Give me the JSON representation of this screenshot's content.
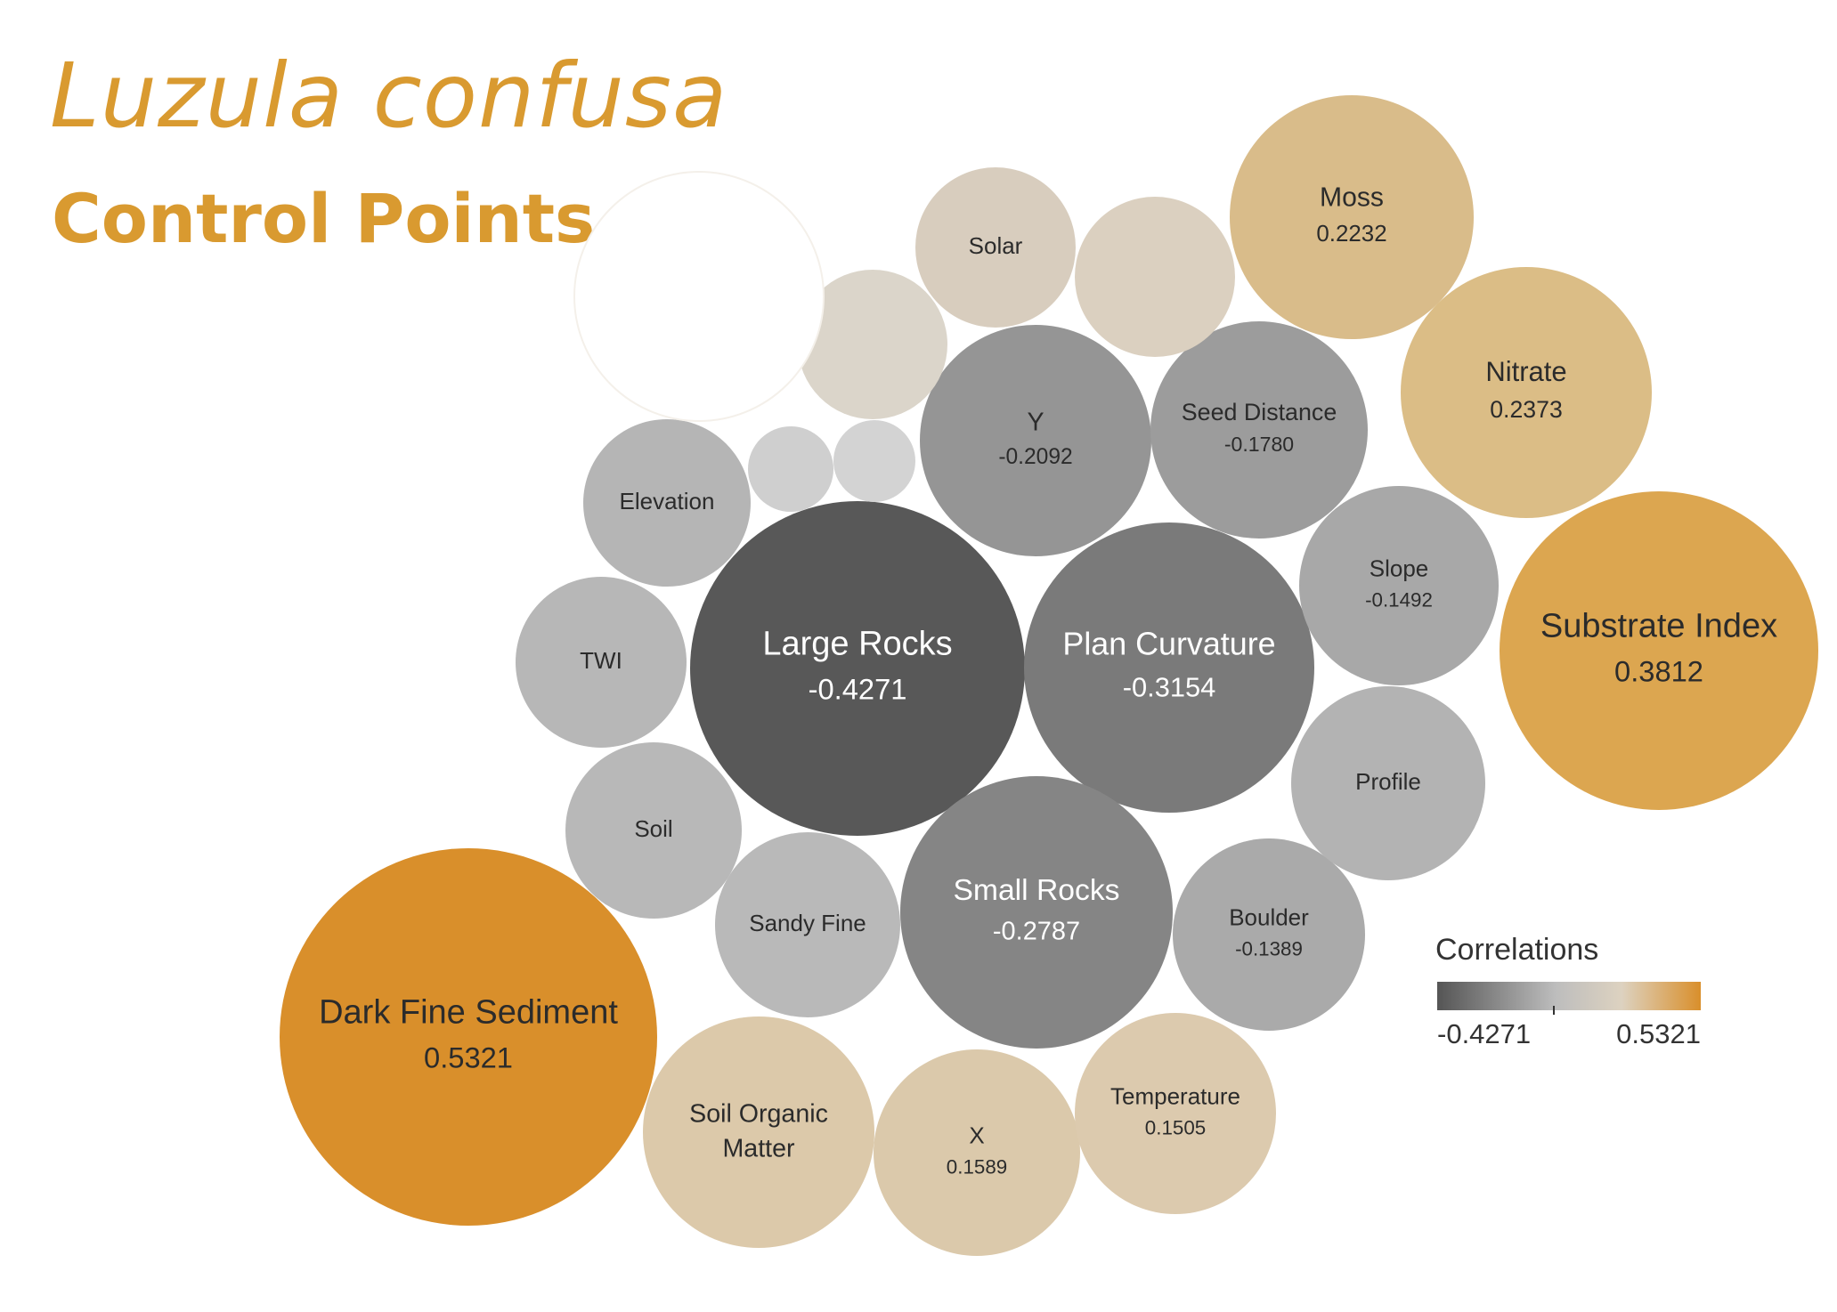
{
  "title": "Luzula confusa",
  "subtitle": "Control Points",
  "chart_data": {
    "type": "bubble",
    "title": "Luzula confusa",
    "subtitle": "Control Points",
    "size_encodes": "absolute correlation",
    "color_encodes": "correlation",
    "legend": {
      "title": "Correlations",
      "min_label": "-0.4271",
      "max_label": "0.5321",
      "placement": "bottom-right",
      "colors": [
        "#555555",
        "#bdbdbd",
        "#ddd2c0",
        "#d98f2b"
      ]
    },
    "points": [
      {
        "label": "Large Rocks",
        "value": -0.4271,
        "value_label": "-0.4271",
        "color": "#585858"
      },
      {
        "label": "Plan Curvature",
        "value": -0.3154,
        "value_label": "-0.3154",
        "color": "#7a7a7a"
      },
      {
        "label": "Small Rocks",
        "value": -0.2787,
        "value_label": "-0.2787",
        "color": "#858585"
      },
      {
        "label": "Y",
        "value": -0.2092,
        "value_label": "-0.2092",
        "color": "#959595"
      },
      {
        "label": "Seed Distance",
        "value": -0.178,
        "value_label": "-0.1780",
        "color": "#9c9c9c"
      },
      {
        "label": "Slope",
        "value": -0.1492,
        "value_label": "-0.1492",
        "color": "#a8a8a8"
      },
      {
        "label": "Boulder",
        "value": -0.1389,
        "value_label": "-0.1389",
        "color": "#aaaaaa"
      },
      {
        "label": "Elevation",
        "value_label": "",
        "color": "#b5b5b5"
      },
      {
        "label": "TWI",
        "value_label": "",
        "color": "#b7b7b7"
      },
      {
        "label": "Soil",
        "value_label": "",
        "color": "#b8b8b8"
      },
      {
        "label": "Sandy Fine",
        "value_label": "",
        "color": "#b9b9b9"
      },
      {
        "label": "Profile",
        "value_label": "",
        "color": "#b3b3b3"
      },
      {
        "label": "Solar",
        "value_label": "",
        "color": "#d8cdbe"
      },
      {
        "label": "Moss",
        "value": 0.2232,
        "value_label": "0.2232",
        "color": "#d9bc8a"
      },
      {
        "label": "Nitrate",
        "value": 0.2373,
        "value_label": "0.2373",
        "color": "#dbbd86"
      },
      {
        "label": "Substrate Index",
        "value": 0.3812,
        "value_label": "0.3812",
        "color": "#dca650"
      },
      {
        "label": "Dark Fine Sediment",
        "value": 0.5321,
        "value_label": "0.5321",
        "color": "#d98f2b"
      },
      {
        "label": "Soil Organic Matter",
        "value_label": "",
        "color": "#dcc9aa"
      },
      {
        "label": "X",
        "value": 0.1589,
        "value_label": "0.1589",
        "color": "#dbc9ab"
      },
      {
        "label": "Temperature",
        "value": 0.1505,
        "value_label": "0.1505",
        "color": "#dccaae"
      },
      {
        "label": "",
        "value_label": "",
        "color": "#dbd0c0"
      },
      {
        "label": "",
        "value_label": "",
        "color": "#dbd5ca"
      },
      {
        "label": "",
        "value_label": "",
        "color": "#cfcfcf"
      },
      {
        "label": "",
        "value_label": "",
        "color": "#d3d3d3"
      },
      {
        "label": "",
        "value_label": "",
        "color": "#ffffff"
      }
    ]
  }
}
